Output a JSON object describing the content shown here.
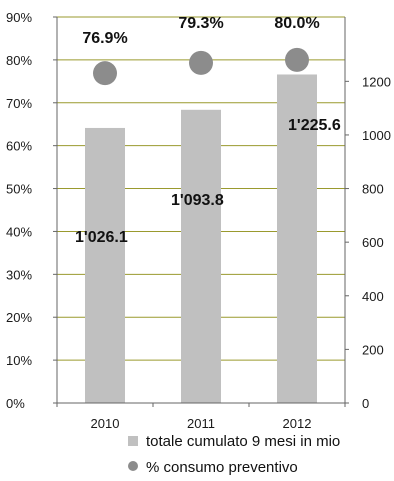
{
  "chart_data": {
    "type": "bar",
    "categories": [
      "2010",
      "2011",
      "2012"
    ],
    "series": [
      {
        "name": "totale cumulato 9 mesi in mio",
        "axis": "right",
        "values": [
          1026.1,
          1093.8,
          1225.6
        ],
        "labels": [
          "1'026.1",
          "1'093.8",
          "1'225.6"
        ],
        "color": "#c0c0c0"
      },
      {
        "name": "% consumo preventivo",
        "axis": "left",
        "kind": "scatter",
        "values": [
          76.9,
          79.3,
          80.0
        ],
        "labels": [
          "76.9%",
          "79.3%",
          "80.0%"
        ],
        "color": "#8c8c8c"
      }
    ],
    "left_axis": {
      "ylim": [
        0,
        90
      ],
      "ticks": [
        "0%",
        "10%",
        "20%",
        "30%",
        "40%",
        "50%",
        "60%",
        "70%",
        "80%",
        "90%"
      ]
    },
    "right_axis": {
      "ylim": [
        0,
        1440
      ],
      "ticks": [
        "0",
        "200",
        "400",
        "600",
        "800",
        "1000",
        "1200"
      ]
    },
    "grid": true,
    "grid_color": "#9a9a2e",
    "legend_position": "bottom"
  }
}
